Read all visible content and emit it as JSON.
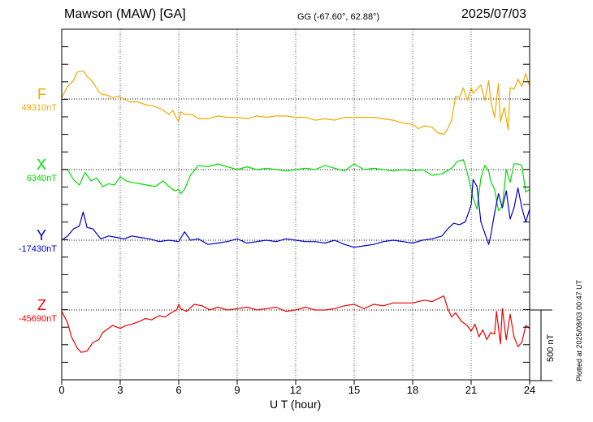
{
  "header": {
    "station": "Mawson (MAW)  [GA]",
    "coords": "GG (-67.60°,  62.88°)",
    "date": "2025/07/03"
  },
  "footer": {
    "plotted": "Plotted at 2025/08/03 00:47 UT"
  },
  "colors": {
    "F": "#f2a900",
    "X": "#00dd00",
    "Y": "#0000cc",
    "Z": "#ee0000"
  },
  "chart_data": {
    "type": "line",
    "xlabel": "U T (hour)",
    "xlim": [
      0,
      24
    ],
    "xticks": [
      "0",
      "3",
      "6",
      "9",
      "12",
      "15",
      "18",
      "21",
      "24"
    ],
    "scale_bar_label": "500 nT",
    "scale_bar_nT": 500,
    "series": [
      {
        "name": "F",
        "baseline_label": "49310nT",
        "baseline_nT": 49310,
        "x": [
          0,
          0.3,
          0.6,
          0.8,
          1.1,
          1.3,
          1.6,
          1.9,
          2.1,
          2.3,
          2.6,
          2.9,
          3.2,
          3.5,
          3.9,
          4.3,
          4.7,
          5.1,
          5.5,
          5.7,
          5.9,
          6.0,
          6.1,
          6.3,
          6.7,
          7.0,
          7.5,
          8.0,
          8.5,
          9,
          9.5,
          10,
          10.5,
          11,
          11.5,
          12,
          12.5,
          13,
          13.5,
          14,
          14.5,
          15,
          15.5,
          16,
          16.5,
          17,
          17.5,
          18,
          18.3,
          18.6,
          19,
          19.3,
          19.6,
          19.8,
          20.0,
          20.2,
          20.4,
          20.6,
          20.8,
          21.0,
          21.1,
          21.3,
          21.5,
          21.7,
          21.9,
          22.0,
          22.2,
          22.4,
          22.5,
          22.7,
          22.9,
          23.0,
          23.2,
          23.4,
          23.6,
          23.8,
          24.0
        ],
        "y": [
          49320,
          49400,
          49440,
          49500,
          49510,
          49470,
          49430,
          49360,
          49340,
          49340,
          49320,
          49330,
          49310,
          49290,
          49290,
          49270,
          49260,
          49240,
          49200,
          49230,
          49170,
          49150,
          49220,
          49200,
          49200,
          49170,
          49170,
          49190,
          49180,
          49180,
          49170,
          49190,
          49180,
          49190,
          49190,
          49180,
          49180,
          49160,
          49170,
          49160,
          49180,
          49180,
          49180,
          49180,
          49170,
          49160,
          49140,
          49130,
          49100,
          49120,
          49110,
          49070,
          49060,
          49100,
          49160,
          49330,
          49320,
          49390,
          49300,
          49390,
          49350,
          49380,
          49410,
          49300,
          49440,
          49300,
          49180,
          49420,
          49150,
          49250,
          49090,
          49390,
          49380,
          49450,
          49400,
          49490,
          49400
        ]
      },
      {
        "name": "X",
        "baseline_label": "6340nT",
        "baseline_nT": 6340,
        "x": [
          0,
          0.3,
          0.6,
          0.9,
          1.2,
          1.5,
          1.8,
          2.1,
          2.4,
          2.7,
          3.0,
          3.3,
          3.6,
          4.0,
          4.4,
          4.8,
          5.2,
          5.5,
          5.8,
          6.0,
          6.1,
          6.3,
          6.6,
          7.0,
          7.5,
          8.0,
          8.5,
          9,
          9.5,
          10,
          10.5,
          11,
          11.5,
          12,
          12.5,
          13,
          13.5,
          14,
          14.5,
          15,
          15.5,
          16,
          16.5,
          17,
          17.5,
          18,
          18.5,
          19,
          19.5,
          20,
          20.3,
          20.6,
          20.8,
          21.0,
          21.1,
          21.3,
          21.5,
          21.7,
          21.9,
          22.0,
          22.2,
          22.4,
          22.6,
          22.8,
          23.0,
          23.2,
          23.4,
          23.6,
          23.8,
          24.0
        ],
        "y": [
          6340,
          6340,
          6270,
          6230,
          6320,
          6260,
          6280,
          6220,
          6240,
          6230,
          6290,
          6260,
          6250,
          6240,
          6230,
          6220,
          6260,
          6220,
          6190,
          6200,
          6170,
          6200,
          6300,
          6370,
          6360,
          6380,
          6360,
          6340,
          6360,
          6340,
          6350,
          6340,
          6330,
          6340,
          6350,
          6340,
          6370,
          6350,
          6330,
          6380,
          6340,
          6350,
          6340,
          6330,
          6340,
          6330,
          6340,
          6300,
          6310,
          6350,
          6400,
          6410,
          6320,
          6200,
          6140,
          6060,
          6280,
          6370,
          6330,
          6260,
          6200,
          6050,
          6080,
          6340,
          6250,
          6380,
          6380,
          6370,
          6180,
          6200
        ]
      },
      {
        "name": "Y",
        "baseline_label": "-17430nT",
        "baseline_nT": -17430,
        "x": [
          0,
          0.3,
          0.6,
          0.9,
          1.1,
          1.3,
          1.6,
          2.0,
          2.4,
          2.8,
          3.2,
          3.6,
          4.0,
          4.5,
          5,
          5.5,
          6,
          6.3,
          6.6,
          7,
          7.5,
          8,
          8.5,
          9,
          9.5,
          10,
          10.5,
          11,
          11.5,
          12,
          12.5,
          13,
          13.5,
          14,
          14.5,
          15,
          15.5,
          16,
          16.5,
          17,
          17.5,
          18,
          18.5,
          19,
          19.5,
          19.8,
          20.1,
          20.4,
          20.7,
          21.0,
          21.1,
          21.3,
          21.5,
          21.7,
          21.9,
          22.0,
          22.2,
          22.4,
          22.6,
          22.8,
          23.0,
          23.2,
          23.4,
          23.6,
          23.8,
          24.0
        ],
        "y": [
          -17430,
          -17400,
          -17350,
          -17330,
          -17230,
          -17340,
          -17350,
          -17420,
          -17400,
          -17410,
          -17420,
          -17400,
          -17410,
          -17420,
          -17440,
          -17430,
          -17440,
          -17370,
          -17430,
          -17420,
          -17460,
          -17450,
          -17440,
          -17420,
          -17450,
          -17440,
          -17430,
          -17440,
          -17420,
          -17430,
          -17440,
          -17440,
          -17450,
          -17430,
          -17460,
          -17480,
          -17470,
          -17460,
          -17440,
          -17430,
          -17440,
          -17450,
          -17430,
          -17420,
          -17400,
          -17350,
          -17310,
          -17320,
          -17300,
          -17180,
          -17000,
          -17050,
          -17300,
          -17380,
          -17460,
          -17400,
          -17240,
          -17100,
          -17200,
          -17080,
          -17280,
          -17200,
          -17060,
          -17200,
          -17300,
          -17210
        ]
      },
      {
        "name": "Z",
        "baseline_label": "-45690nT",
        "baseline_nT": -45690,
        "x": [
          0,
          0.3,
          0.5,
          0.8,
          1.0,
          1.3,
          1.6,
          1.9,
          2.1,
          2.3,
          2.6,
          3.0,
          3.3,
          3.6,
          4.0,
          4.3,
          4.6,
          5.0,
          5.3,
          5.6,
          5.9,
          6.0,
          6.1,
          6.4,
          6.8,
          7.2,
          7.6,
          8,
          8.5,
          9,
          9.5,
          10,
          10.5,
          11,
          11.5,
          12,
          12.5,
          13,
          13.5,
          14,
          14.5,
          15,
          15.5,
          16,
          16.5,
          17,
          17.5,
          18,
          18.3,
          18.6,
          19,
          19.3,
          19.6,
          19.8,
          20.0,
          20.2,
          20.5,
          20.8,
          21.0,
          21.2,
          21.4,
          21.6,
          21.8,
          22.0,
          22.2,
          22.3,
          22.5,
          22.6,
          22.8,
          23.0,
          23.2,
          23.4,
          23.6,
          23.8,
          24.0
        ],
        "y": [
          -45700,
          -45780,
          -45880,
          -45960,
          -45990,
          -45980,
          -45920,
          -45900,
          -45850,
          -45830,
          -45800,
          -45820,
          -45800,
          -45790,
          -45770,
          -45750,
          -45760,
          -45730,
          -45740,
          -45710,
          -45690,
          -45650,
          -45680,
          -45700,
          -45650,
          -45660,
          -45690,
          -45670,
          -45690,
          -45680,
          -45670,
          -45690,
          -45680,
          -45670,
          -45700,
          -45690,
          -45670,
          -45690,
          -45690,
          -45680,
          -45660,
          -45650,
          -45680,
          -45650,
          -45660,
          -45640,
          -45640,
          -45640,
          -45630,
          -45620,
          -45630,
          -45610,
          -45590,
          -45680,
          -45740,
          -45710,
          -45770,
          -45800,
          -45840,
          -45790,
          -45880,
          -45830,
          -45900,
          -45850,
          -45860,
          -45700,
          -45930,
          -45680,
          -45900,
          -45720,
          -45880,
          -45950,
          -45920,
          -45800,
          -45820
        ]
      }
    ]
  }
}
